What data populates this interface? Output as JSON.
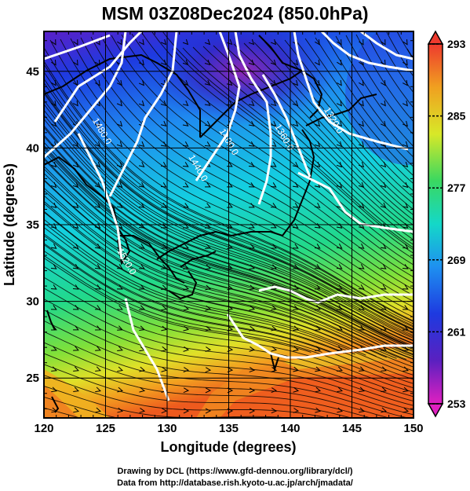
{
  "title": "MSM 03Z08Dec2024 (850.0hPa)",
  "x_axis": {
    "label": "Longitude (degrees)",
    "range": [
      120,
      150
    ],
    "ticks": [
      "120",
      "125",
      "130",
      "135",
      "140",
      "145",
      "150"
    ]
  },
  "y_axis": {
    "label": "Latitude  (degrees)",
    "range": [
      22.4,
      47.6
    ],
    "ticks": [
      "25",
      "30",
      "35",
      "40",
      "45"
    ]
  },
  "colorbar": {
    "min": 253,
    "max": 293,
    "ticks": [
      "293",
      "285",
      "277",
      "269",
      "261",
      "253"
    ]
  },
  "contours": [
    {
      "label": "1480.0",
      "lon": 124.5,
      "lat": 41.0
    },
    {
      "label": "1440.0",
      "lon": 132.3,
      "lat": 38.6
    },
    {
      "label": "1400.0",
      "lon": 134.8,
      "lat": 40.3
    },
    {
      "label": "1360.0",
      "lon": 139.3,
      "lat": 40.6
    },
    {
      "label": "1320.0",
      "lon": 143.3,
      "lat": 41.7
    },
    {
      "label": "1520.0",
      "lon": 126.5,
      "lat": 32.5
    }
  ],
  "credits": {
    "line1": "Drawing by DCL (https://www.gfd-dennou.org/library/dcl/)",
    "line2": "Data from http://database.rish.kyoto-u.ac.jp/arch/jmadata/"
  },
  "colors": {
    "contour": "#ffffff",
    "stream": "#000000"
  }
}
